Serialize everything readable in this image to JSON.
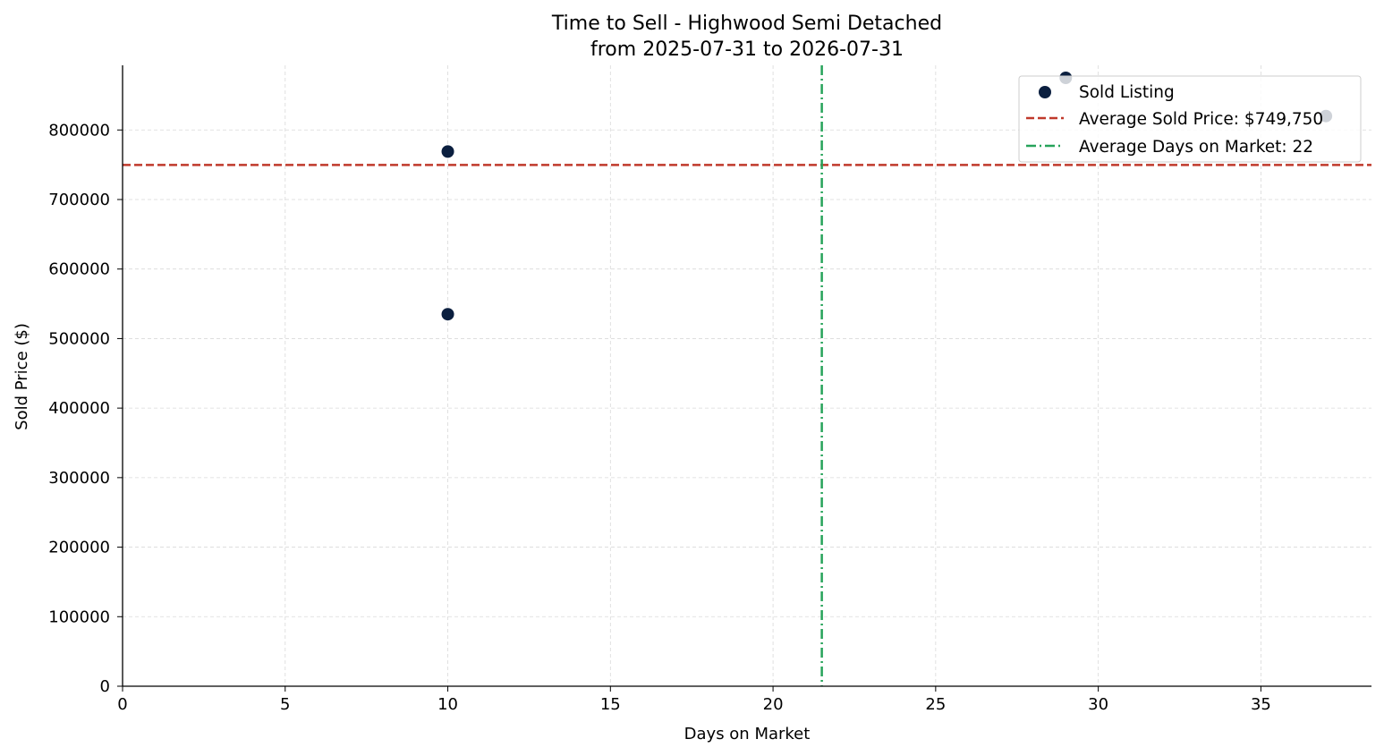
{
  "chart_data": {
    "type": "scatter",
    "title": "Time to Sell - Highwood Semi Detached",
    "subtitle": "from 2025-07-31 to 2026-07-31",
    "xlabel": "Days on Market",
    "ylabel": "Sold Price ($)",
    "xlim": [
      0,
      38.4
    ],
    "ylim": [
      0,
      893000
    ],
    "x_ticks": [
      0,
      5,
      10,
      15,
      20,
      25,
      30,
      35
    ],
    "y_ticks": [
      0,
      100000,
      200000,
      300000,
      400000,
      500000,
      600000,
      700000,
      800000
    ],
    "grid": true,
    "legend_position": "top-right",
    "series": [
      {
        "name": "Sold Listing",
        "color": "#0b1f3f",
        "points": [
          {
            "x": 10,
            "y": 769000
          },
          {
            "x": 10,
            "y": 535000
          },
          {
            "x": 29,
            "y": 875000
          },
          {
            "x": 37,
            "y": 820000
          }
        ]
      }
    ],
    "reference_lines": [
      {
        "orientation": "horizontal",
        "value": 749750,
        "label": "Average Sold Price: $749,750",
        "color": "#c0392b",
        "style": "dashed"
      },
      {
        "orientation": "vertical",
        "value": 21.5,
        "label": "Average Days on Market: 22",
        "color": "#27a35a",
        "style": "dashdot"
      }
    ]
  }
}
